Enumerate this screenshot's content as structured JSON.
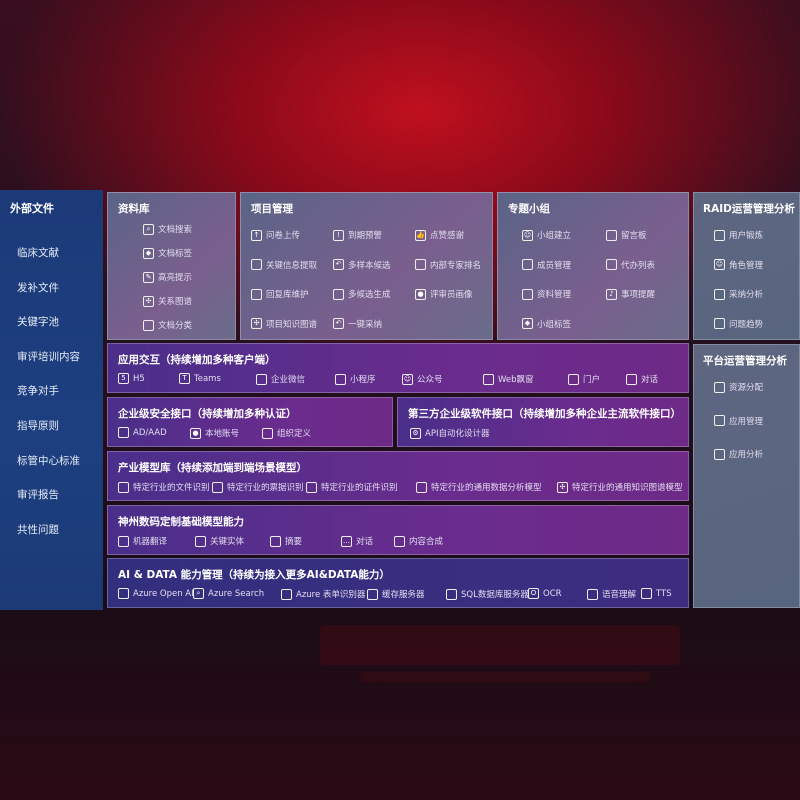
{
  "sidebar": {
    "title": "外部文件",
    "items": [
      "临床文献",
      "发补文件",
      "关键字池",
      "审评培训内容",
      "竞争对手",
      "指导原则",
      "标管中心标准",
      "审评报告",
      "共性问题"
    ]
  },
  "panels": [
    {
      "title": "资料库",
      "items": [
        {
          "label": "文档搜索",
          "icon": "doc-search-icon"
        },
        {
          "label": "文档标签",
          "icon": "tag-icon"
        },
        {
          "label": "高亮提示",
          "icon": "pen-icon"
        },
        {
          "label": "关系图谱",
          "icon": "graph-icon"
        },
        {
          "label": "文档分类",
          "icon": "doc-category-icon"
        }
      ]
    },
    {
      "title": "项目管理",
      "items": [
        {
          "label": "问卷上传",
          "icon": "cloud-upload-icon"
        },
        {
          "label": "到期预警",
          "icon": "alarm-icon"
        },
        {
          "label": "点赞感谢",
          "icon": "thumbs-up-icon"
        },
        {
          "label": "关键信息提取",
          "icon": "window-icon"
        },
        {
          "label": "多样本候选",
          "icon": "reply-icon"
        },
        {
          "label": "内部专家排名",
          "icon": "ranking-icon"
        },
        {
          "label": "回复库维护",
          "icon": "edit-icon"
        },
        {
          "label": "多候选生成",
          "icon": "puzzle-icon"
        },
        {
          "label": "评审员画像",
          "icon": "user-icon"
        },
        {
          "label": "项目知识图谱",
          "icon": "graph-icon"
        },
        {
          "label": "一键采纳",
          "icon": "reply-icon"
        }
      ]
    },
    {
      "title": "专题小组",
      "items": [
        {
          "label": "小组建立",
          "icon": "group-icon"
        },
        {
          "label": "留言板",
          "icon": "bbs-icon"
        },
        {
          "label": "成员管理",
          "icon": "user-add-icon"
        },
        {
          "label": "代办列表",
          "icon": "clipboard-icon"
        },
        {
          "label": "资料管理",
          "icon": "folder-icon"
        },
        {
          "label": "事项提醒",
          "icon": "bell-icon"
        },
        {
          "label": "小组标签",
          "icon": "tag-icon"
        }
      ]
    },
    {
      "title": "RAID运营管理分析",
      "items": [
        {
          "label": "用户锻炼",
          "icon": "id-card-icon"
        },
        {
          "label": "角色管理",
          "icon": "group-icon"
        },
        {
          "label": "采纳分析",
          "icon": "qa-icon"
        },
        {
          "label": "问题趋势",
          "icon": "trend-icon"
        }
      ]
    },
    {
      "title": "平台运营管理分析",
      "items": [
        {
          "label": "资源分配",
          "icon": "list-icon"
        },
        {
          "label": "应用管理",
          "icon": "apps-icon"
        },
        {
          "label": "应用分析",
          "icon": "analysis-icon"
        }
      ]
    },
    {
      "title": "应用交互（持续增加多种客户端）",
      "items": [
        {
          "label": "H5",
          "icon": "html5-icon"
        },
        {
          "label": "Teams",
          "icon": "teams-icon"
        },
        {
          "label": "企业微信",
          "icon": "wecom-icon"
        },
        {
          "label": "小程序",
          "icon": "miniapp-icon"
        },
        {
          "label": "公众号",
          "icon": "group-icon"
        },
        {
          "label": "Web飘窗",
          "icon": "window-icon"
        },
        {
          "label": "门户",
          "icon": "portal-icon"
        },
        {
          "label": "对话",
          "icon": "chat-users-icon"
        }
      ]
    },
    {
      "title": "企业级安全接口（持续增加多种认证）",
      "items": [
        {
          "label": "AD/AAD",
          "icon": "ad-icon"
        },
        {
          "label": "本地账号",
          "icon": "user-icon"
        },
        {
          "label": "组织定义",
          "icon": "org-icon"
        }
      ]
    },
    {
      "title": "第三方企业级软件接口（持续增加多种企业主流软件接口）",
      "items": [
        {
          "label": "API自动化设计器",
          "icon": "gear-icon"
        }
      ]
    },
    {
      "title": "产业模型库（持续添加端到端场景模型）",
      "items": [
        {
          "label": "特定行业的文件识别",
          "icon": "file-icon"
        },
        {
          "label": "特定行业的票据识别",
          "icon": "receipt-icon"
        },
        {
          "label": "特定行业的证件识别",
          "icon": "id-card-icon"
        },
        {
          "label": "特定行业的通用数据分析模型",
          "icon": "chart-icon"
        },
        {
          "label": "特定行业的通用知识图谱模型",
          "icon": "graph-icon"
        }
      ]
    },
    {
      "title": "神州数码定制基础模型能力",
      "items": [
        {
          "label": "机器翻译",
          "icon": "translate-icon"
        },
        {
          "label": "关键实体",
          "icon": "entity-icon"
        },
        {
          "label": "摘要",
          "icon": "doc-icon"
        },
        {
          "label": "对话",
          "icon": "chat-icon"
        },
        {
          "label": "内容合成",
          "icon": "puzzle-icon"
        }
      ]
    },
    {
      "title": "AI & DATA 能力管理（持续为接入更多AI&DATA能力）",
      "items": [
        {
          "label": "Azure Open AI",
          "icon": "openai-icon"
        },
        {
          "label": "Azure Search",
          "icon": "search-icon"
        },
        {
          "label": "Azure 表单识别器",
          "icon": "form-icon"
        },
        {
          "label": "缓存服务器",
          "icon": "cache-icon"
        },
        {
          "label": "SQL数据库服务器",
          "icon": "database-icon"
        },
        {
          "label": "OCR",
          "icon": "ocr-icon"
        },
        {
          "label": "语音理解",
          "icon": "speech-icon"
        },
        {
          "label": "TTS",
          "icon": "tts-icon"
        }
      ]
    }
  ]
}
